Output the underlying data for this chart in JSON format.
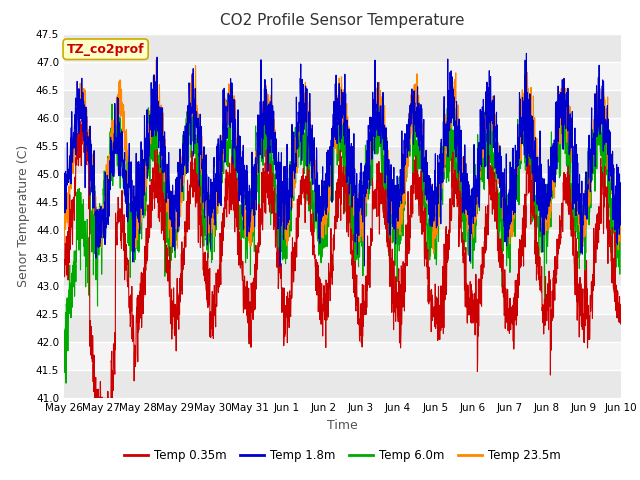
{
  "title": "CO2 Profile Sensor Temperature",
  "xlabel": "Time",
  "ylabel": "Senor Temperature (C)",
  "ylim": [
    41.0,
    47.5
  ],
  "annotation_text": "TZ_co2prof",
  "annotation_color": "#cc0000",
  "annotation_bg": "#ffffcc",
  "annotation_border": "#ccaa00",
  "bg_color": "#ffffff",
  "plot_bg_color": "#e8e8e8",
  "grid_color": "#ffffff",
  "line_colors": {
    "Temp 0.35m": "#cc0000",
    "Temp 1.8m": "#0000cc",
    "Temp 6.0m": "#00aa00",
    "Temp 23.5m": "#ff8800"
  },
  "line_width": 0.8,
  "x_tick_labels": [
    "May 26",
    "May 27",
    "May 28",
    "May 29",
    "May 30",
    "May 31",
    "Jun 1",
    "Jun 2",
    "Jun 3",
    "Jun 4",
    "Jun 5",
    "Jun 6",
    "Jun 7",
    "Jun 8",
    "Jun 9",
    "Jun 10"
  ],
  "title_fontsize": 11,
  "axis_label_fontsize": 9,
  "tick_fontsize": 7.5,
  "legend_fontsize": 8.5
}
